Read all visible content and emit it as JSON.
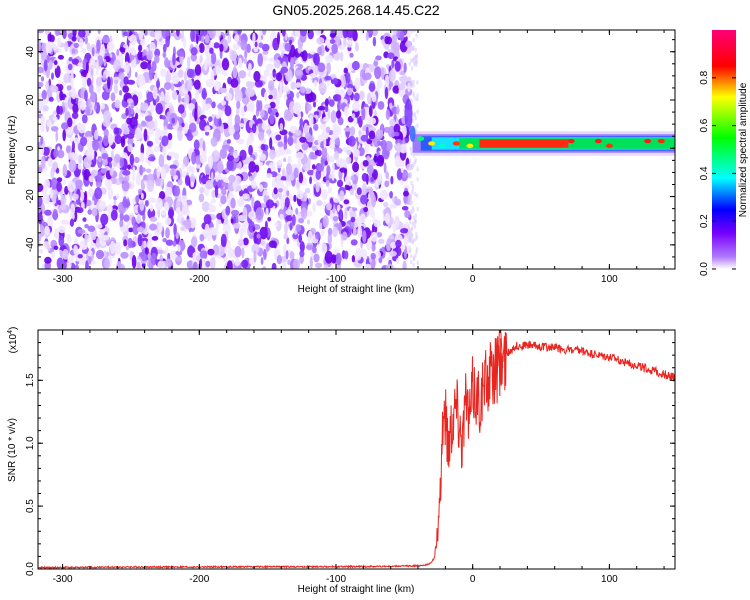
{
  "title": "GN05.2025.268.14.45.C22",
  "chart_data": [
    {
      "type": "heatmap",
      "xlabel": "Height of straight line (km)",
      "ylabel": "Frequency (Hz)",
      "xlim": [
        -318,
        148
      ],
      "ylim": [
        -50,
        49
      ],
      "xticks": [
        -300,
        -200,
        -100,
        0,
        100
      ],
      "xtick_labels": [
        "-300",
        "-200",
        "-100",
        "0",
        "100"
      ],
      "yticks": [
        -40,
        -20,
        0,
        20,
        40
      ],
      "ytick_labels": [
        "-40",
        "-20",
        "0",
        "20",
        "40"
      ],
      "noise_region_x": [
        -318,
        -46
      ],
      "signal_band_hz": [
        -1,
        5
      ],
      "colorbar": {
        "label": "Normalized spectral amplitude",
        "range": [
          0.0,
          1.0
        ],
        "ticks": [
          0.0,
          0.2,
          0.4,
          0.6,
          0.8
        ],
        "tick_labels": [
          "0.0",
          "0.2",
          "0.4",
          "0.6",
          "0.8"
        ],
        "colors": [
          "#ffffff",
          "#7700ff",
          "#0000ff",
          "#00ffff",
          "#00ff00",
          "#ffff00",
          "#ff0000",
          "#ff0077"
        ]
      }
    },
    {
      "type": "line",
      "xlabel": "Height of straight line (km)",
      "ylabel": "SNR (10 * v/v)",
      "yscale_label": "(x10",
      "yscale_exp": "4",
      "xlim": [
        -318,
        148
      ],
      "ylim": [
        0,
        1.9
      ],
      "xticks": [
        -300,
        -200,
        -100,
        0,
        100
      ],
      "xtick_labels": [
        "-300",
        "-200",
        "-100",
        "0",
        "100"
      ],
      "yticks": [
        0,
        0.5,
        1.0,
        1.5
      ],
      "ytick_labels": [
        "0.0",
        "0.5",
        "1.0",
        "1.5"
      ],
      "color": "#e8251f",
      "x": [
        -318,
        -250,
        -200,
        -150,
        -100,
        -60,
        -40,
        -32,
        -28,
        -24,
        -22,
        -20,
        -18,
        -15,
        -12,
        -8,
        -5,
        -2,
        0,
        5,
        10,
        15,
        20,
        25,
        30,
        40,
        50,
        60,
        70,
        80,
        90,
        100,
        110,
        120,
        130,
        140,
        148
      ],
      "y": [
        0.005,
        0.01,
        0.01,
        0.012,
        0.012,
        0.015,
        0.02,
        0.03,
        0.08,
        0.45,
        1.2,
        1.25,
        1.0,
        1.22,
        1.35,
        1.05,
        1.3,
        1.2,
        1.45,
        1.35,
        1.5,
        1.55,
        1.6,
        1.7,
        1.77,
        1.78,
        1.77,
        1.76,
        1.74,
        1.73,
        1.7,
        1.68,
        1.65,
        1.62,
        1.58,
        1.55,
        1.52
      ]
    }
  ]
}
